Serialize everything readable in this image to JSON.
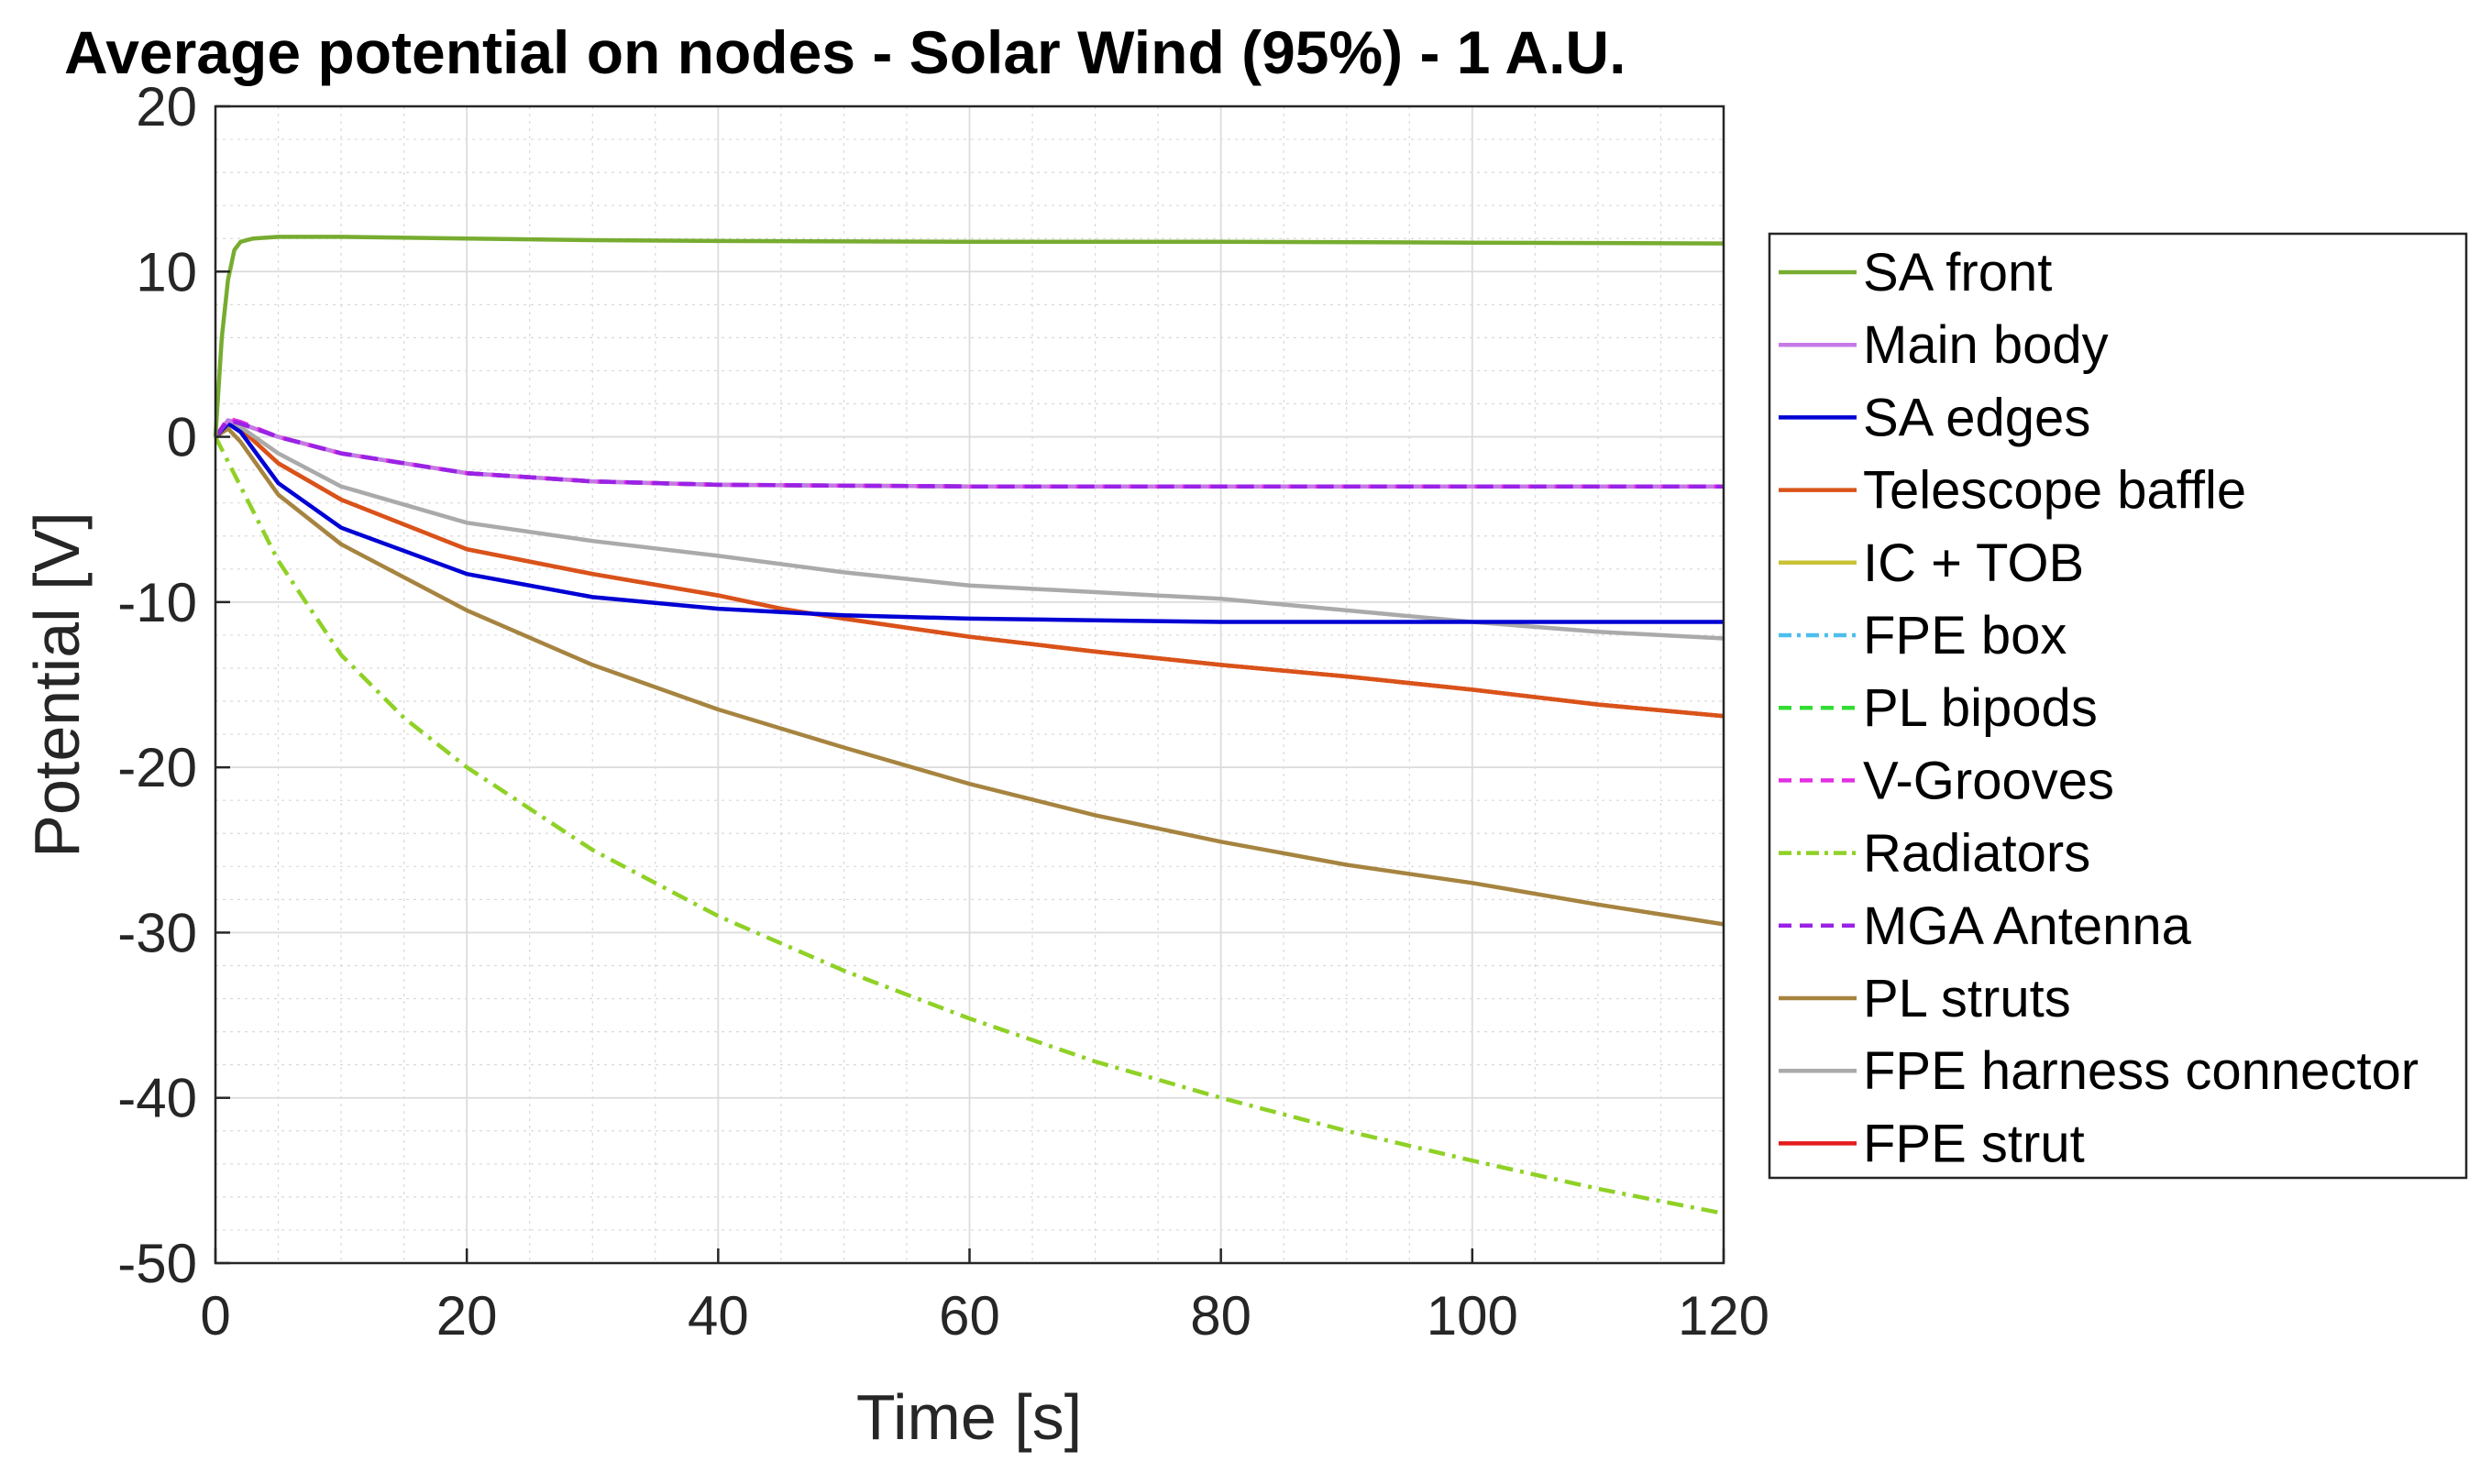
{
  "chart_data": {
    "type": "line",
    "title": "Average potential on nodes - Solar Wind (95%) - 1 A.U.",
    "xlabel": "Time [s]",
    "ylabel": "Potential [V]",
    "xlim": [
      0,
      120
    ],
    "ylim": [
      -50,
      20
    ],
    "xticks": [
      0,
      20,
      40,
      60,
      80,
      100,
      120
    ],
    "yticks": [
      20,
      10,
      0,
      -10,
      -20,
      -30,
      -40,
      -50
    ],
    "grid": true,
    "minor_grid": true,
    "legend_position": "outside-right",
    "series": [
      {
        "name": "SA front",
        "color": "#77ac30",
        "dash": "solid",
        "x": [
          0,
          0.5,
          1,
          1.5,
          2,
          3,
          5,
          10,
          20,
          30,
          40,
          60,
          80,
          100,
          120
        ],
        "y": [
          0,
          6,
          9.5,
          11.3,
          11.8,
          12.0,
          12.1,
          12.1,
          12.0,
          11.9,
          11.85,
          11.8,
          11.8,
          11.75,
          11.7
        ]
      },
      {
        "name": "Main body",
        "color": "#c679e6",
        "dash": "solid",
        "x": [
          0,
          1,
          2,
          5,
          10,
          20,
          30,
          40,
          60,
          80,
          100,
          120
        ],
        "y": [
          0,
          1.0,
          0.8,
          0,
          -1.0,
          -2.2,
          -2.7,
          -2.9,
          -3.0,
          -3.0,
          -3.0,
          -3.0
        ]
      },
      {
        "name": "SA edges",
        "color": "#0000d4",
        "dash": "solid",
        "x": [
          0,
          1,
          2,
          5,
          10,
          20,
          30,
          40,
          50,
          60,
          70,
          80,
          90,
          100,
          110,
          120
        ],
        "y": [
          0,
          0.8,
          0.3,
          -2.8,
          -5.5,
          -8.3,
          -9.7,
          -10.4,
          -10.8,
          -11.0,
          -11.1,
          -11.2,
          -11.2,
          -11.2,
          -11.2,
          -11.2
        ]
      },
      {
        "name": "Telescope baffle",
        "color": "#d95319",
        "dash": "solid",
        "x": [
          0,
          1,
          2,
          5,
          10,
          20,
          30,
          40,
          45,
          50,
          60,
          70,
          80,
          90,
          100,
          110,
          120
        ],
        "y": [
          0,
          0.8,
          0.5,
          -1.6,
          -3.8,
          -6.8,
          -8.3,
          -9.6,
          -10.4,
          -11.0,
          -12.1,
          -13.0,
          -13.8,
          -14.5,
          -15.3,
          -16.2,
          -16.9
        ]
      },
      {
        "name": "IC + TOB",
        "color": "#c9c234",
        "dash": "solid",
        "x": [
          0,
          1,
          2,
          5,
          10,
          20,
          30,
          40,
          60,
          80,
          100,
          120
        ],
        "y": [
          0,
          1.0,
          0.8,
          0,
          -1.0,
          -2.2,
          -2.7,
          -2.9,
          -3.0,
          -3.0,
          -3.0,
          -3.0
        ]
      },
      {
        "name": "FPE box",
        "color": "#4dbeee",
        "dash": "dashdot",
        "x": [
          0,
          1,
          2,
          5,
          10,
          20,
          30,
          40,
          60,
          80,
          100,
          120
        ],
        "y": [
          0,
          1.0,
          0.8,
          0,
          -1.0,
          -2.2,
          -2.7,
          -2.9,
          -3.0,
          -3.0,
          -3.0,
          -3.0
        ]
      },
      {
        "name": "PL bipods",
        "color": "#33dd33",
        "dash": "dashed",
        "x": [
          0,
          1,
          2,
          5,
          10,
          20,
          30,
          40,
          60,
          80,
          100,
          120
        ],
        "y": [
          0,
          1.0,
          0.8,
          0,
          -1.0,
          -2.2,
          -2.7,
          -2.9,
          -3.0,
          -3.0,
          -3.0,
          -3.0
        ]
      },
      {
        "name": "V-Grooves",
        "color": "#e22ee2",
        "dash": "dashed",
        "x": [
          0,
          1,
          2,
          5,
          10,
          20,
          30,
          40,
          60,
          80,
          100,
          120
        ],
        "y": [
          0,
          1.1,
          0.9,
          0,
          -1.0,
          -2.2,
          -2.7,
          -2.9,
          -3.0,
          -3.0,
          -3.0,
          -3.0
        ]
      },
      {
        "name": "Radiators",
        "color": "#8fd126",
        "dash": "dashdot",
        "x": [
          0,
          1,
          2,
          5,
          10,
          15,
          20,
          30,
          40,
          50,
          60,
          70,
          80,
          90,
          100,
          110,
          120
        ],
        "y": [
          0,
          -1.5,
          -3.0,
          -7.5,
          -13.2,
          -17.0,
          -20.0,
          -25.0,
          -29.0,
          -32.3,
          -35.2,
          -37.8,
          -40.0,
          -42.0,
          -43.8,
          -45.5,
          -47.0
        ]
      },
      {
        "name": "MGA Antenna",
        "color": "#9a22e6",
        "dash": "dashed",
        "x": [
          0,
          1,
          2,
          5,
          10,
          20,
          30,
          40,
          60,
          80,
          100,
          120
        ],
        "y": [
          0,
          1.0,
          0.8,
          0,
          -1.0,
          -2.2,
          -2.7,
          -2.9,
          -3.0,
          -3.0,
          -3.0,
          -3.0
        ]
      },
      {
        "name": "PL struts",
        "color": "#a68440",
        "dash": "solid",
        "x": [
          0,
          1,
          2,
          5,
          10,
          20,
          30,
          40,
          50,
          60,
          70,
          80,
          90,
          100,
          110,
          120
        ],
        "y": [
          0,
          0.5,
          -0.3,
          -3.5,
          -6.5,
          -10.5,
          -13.8,
          -16.5,
          -18.8,
          -21.0,
          -22.9,
          -24.5,
          -25.9,
          -27.0,
          -28.3,
          -29.5
        ]
      },
      {
        "name": "FPE harness connector",
        "color": "#aaaaaa",
        "dash": "solid",
        "x": [
          0,
          1,
          2,
          5,
          10,
          20,
          30,
          40,
          50,
          60,
          70,
          80,
          90,
          100,
          110,
          120
        ],
        "y": [
          0,
          0.9,
          0.6,
          -1.0,
          -3.0,
          -5.2,
          -6.3,
          -7.2,
          -8.2,
          -9.0,
          -9.4,
          -9.8,
          -10.5,
          -11.2,
          -11.8,
          -12.2
        ]
      },
      {
        "name": "FPE strut",
        "color": "#e31a1c",
        "dash": "solid",
        "x": [
          0,
          1,
          2,
          5,
          10,
          20,
          30,
          40,
          45,
          50,
          60,
          70,
          80,
          90,
          100,
          110,
          120
        ],
        "y": [
          0,
          0.8,
          0.5,
          -1.6,
          -3.8,
          -6.8,
          -8.3,
          -9.6,
          -10.4,
          -11.0,
          -12.1,
          -13.0,
          -13.8,
          -14.5,
          -15.3,
          -16.2,
          -16.9
        ]
      }
    ]
  }
}
